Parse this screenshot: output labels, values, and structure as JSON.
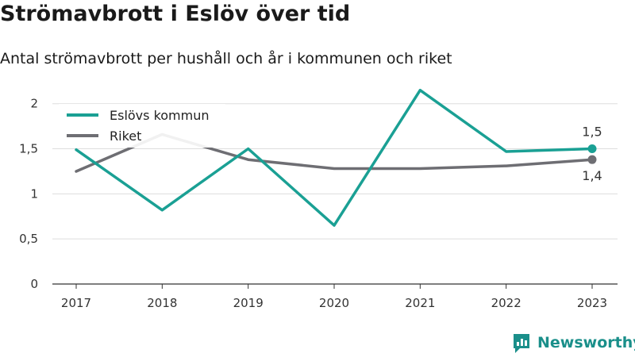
{
  "title": "Strömavbrott i Eslöv över tid",
  "subtitle": "Antal strömavbrott per hushåll och år i kommunen och riket",
  "brand": "Newsworthy",
  "chart_data": {
    "type": "line",
    "x": [
      "2017",
      "2018",
      "2019",
      "2020",
      "2021",
      "2022",
      "2023"
    ],
    "series": [
      {
        "name": "Eslövs kommun",
        "color": "#1aa094",
        "values": [
          1.49,
          0.82,
          1.5,
          0.65,
          2.15,
          1.47,
          1.5
        ],
        "end_label": "1,5"
      },
      {
        "name": "Riket",
        "color": "#6e6e73",
        "values": [
          1.25,
          1.66,
          1.38,
          1.28,
          1.28,
          1.31,
          1.38
        ],
        "end_label": "1,4"
      }
    ],
    "y_ticks": [
      {
        "value": 0,
        "label": "0"
      },
      {
        "value": 0.5,
        "label": "0,5"
      },
      {
        "value": 1,
        "label": "1"
      },
      {
        "value": 1.5,
        "label": "1,5"
      },
      {
        "value": 2,
        "label": "2"
      }
    ],
    "ylim": [
      0,
      2.2
    ],
    "grid": true,
    "legend_position": "top-left"
  }
}
